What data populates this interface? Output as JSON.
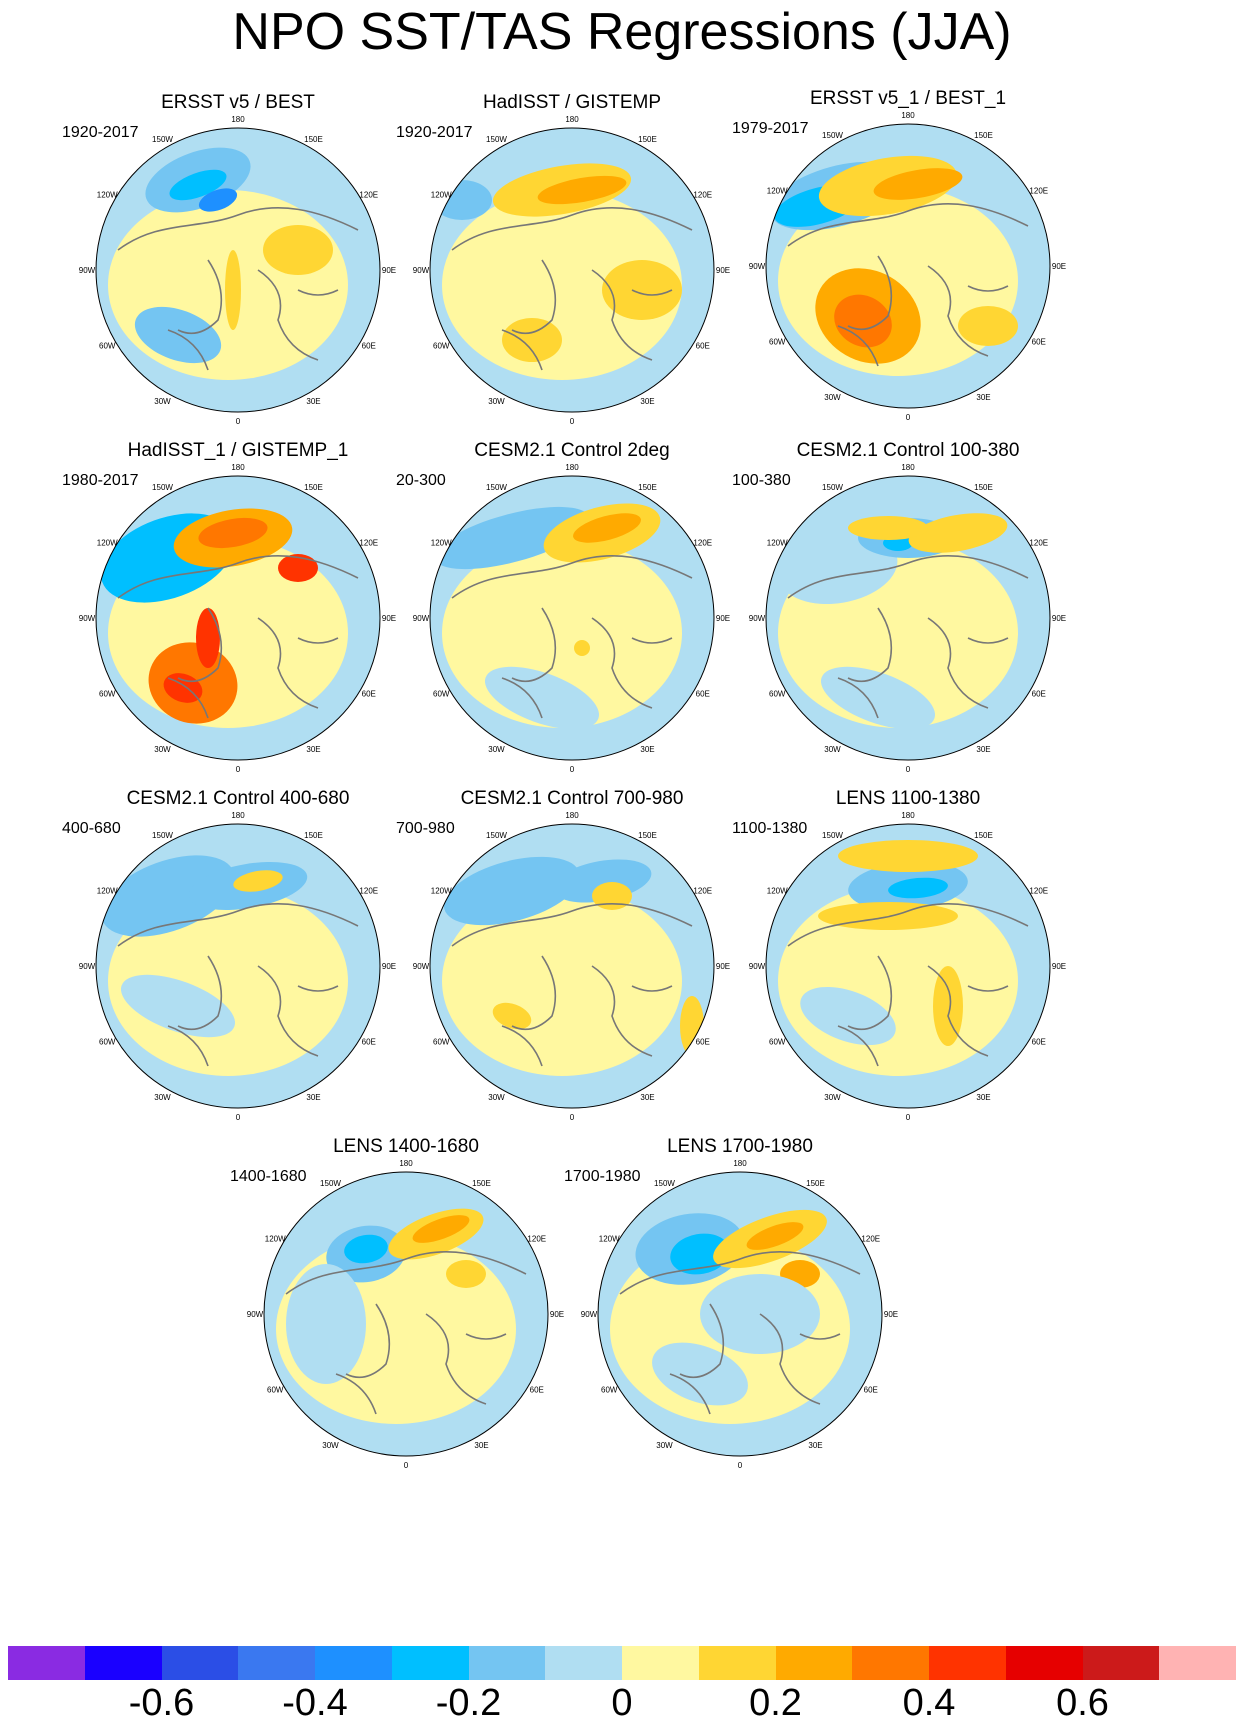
{
  "title": "NPO SST/TAS Regressions (JJA)",
  "panels": [
    {
      "title": "ERSST v5 / BEST",
      "period": "1920-2017",
      "pattern": "a"
    },
    {
      "title": "HadISST / GISTEMP",
      "period": "1920-2017",
      "pattern": "b"
    },
    {
      "title": "ERSST v5_1 / BEST_1",
      "period": "1979-2017",
      "pattern": "c"
    },
    {
      "title": "HadISST_1 / GISTEMP_1",
      "period": "1980-2017",
      "pattern": "d"
    },
    {
      "title": "CESM2.1 Control 2deg",
      "period": "20-300",
      "pattern": "e"
    },
    {
      "title": "CESM2.1 Control 100-380",
      "period": "100-380",
      "pattern": "f"
    },
    {
      "title": "CESM2.1 Control 400-680",
      "period": "400-680",
      "pattern": "g"
    },
    {
      "title": "CESM2.1 Control 700-980",
      "period": "700-980",
      "pattern": "h"
    },
    {
      "title": "LENS 1100-1380",
      "period": "1100-1380",
      "pattern": "i"
    },
    {
      "title": "LENS 1400-1680",
      "period": "1400-1680",
      "pattern": "j"
    },
    {
      "title": "LENS 1700-1980",
      "period": "1700-1980",
      "pattern": "k"
    }
  ],
  "longitude_labels": [
    "180",
    "150E",
    "120E",
    "90E",
    "60E",
    "30E",
    "0",
    "30W",
    "60W",
    "90W",
    "120W",
    "150W"
  ],
  "colorbar": {
    "colors": [
      "#8a2be2",
      "#1a00ff",
      "#2b4ee6",
      "#3a78f0",
      "#1e90ff",
      "#00bfff",
      "#74c5f2",
      "#b0def2",
      "#fff8a0",
      "#ffd633",
      "#ffaa00",
      "#ff7700",
      "#ff3300",
      "#e60000",
      "#cc1a1a",
      "#ffb3b3"
    ],
    "labels": [
      "-0.6",
      "-0.4",
      "-0.2",
      "0",
      "0.2",
      "0.4",
      "0.6"
    ],
    "label_values": [
      -0.6,
      -0.4,
      -0.2,
      0,
      0.2,
      0.4,
      0.6
    ]
  }
}
